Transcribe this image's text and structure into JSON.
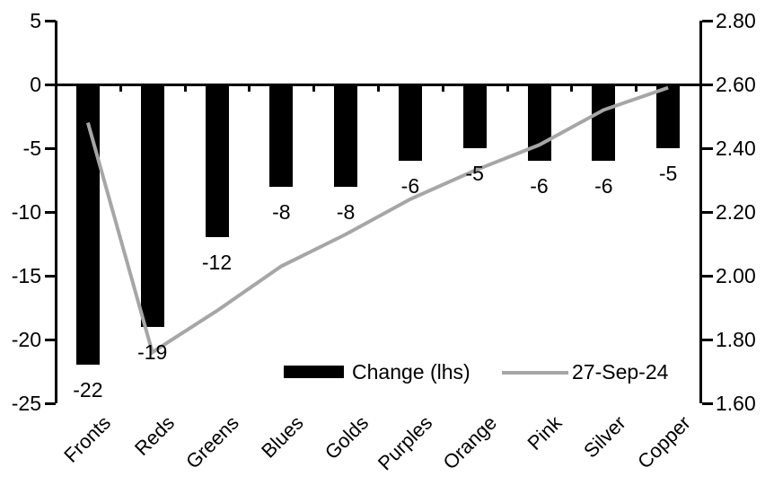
{
  "chart_data": {
    "type": "combo",
    "title": "",
    "categories": [
      "Fronts",
      "Reds",
      "Greens",
      "Blues",
      "Golds",
      "Purples",
      "Orange",
      "Pink",
      "Silver",
      "Copper"
    ],
    "series": [
      {
        "name": "Change (lhs)",
        "type": "bar",
        "axis": "left",
        "color": "#000000",
        "values": [
          -22,
          -19,
          -12,
          -8,
          -8,
          -6,
          -5,
          -6,
          -6,
          -5
        ],
        "data_labels": [
          "-22",
          "-19",
          "-12",
          "-8",
          "-8",
          "-6",
          "-5",
          "-6",
          "-6",
          "-5"
        ]
      },
      {
        "name": "27-Sep-24",
        "type": "line",
        "axis": "right",
        "color": "#a6a6a6",
        "values": [
          2.48,
          1.76,
          1.89,
          2.03,
          2.13,
          2.24,
          2.33,
          2.41,
          2.52,
          2.59
        ]
      }
    ],
    "left_axis": {
      "min": -25,
      "max": 5,
      "step": 5,
      "tick_labels": [
        "5",
        "0",
        "-5",
        "-10",
        "-15",
        "-20",
        "-25"
      ]
    },
    "right_axis": {
      "min": 1.6,
      "max": 2.8,
      "step": 0.2,
      "tick_labels": [
        "2.80",
        "2.60",
        "2.40",
        "2.20",
        "2.00",
        "1.80",
        "1.60"
      ]
    },
    "legend": {
      "position": "bottom-inside",
      "entries": [
        "Change (lhs)",
        "27-Sep-24"
      ]
    },
    "grid": "off",
    "background_color": "#ffffff",
    "axis_color": "#000000"
  }
}
